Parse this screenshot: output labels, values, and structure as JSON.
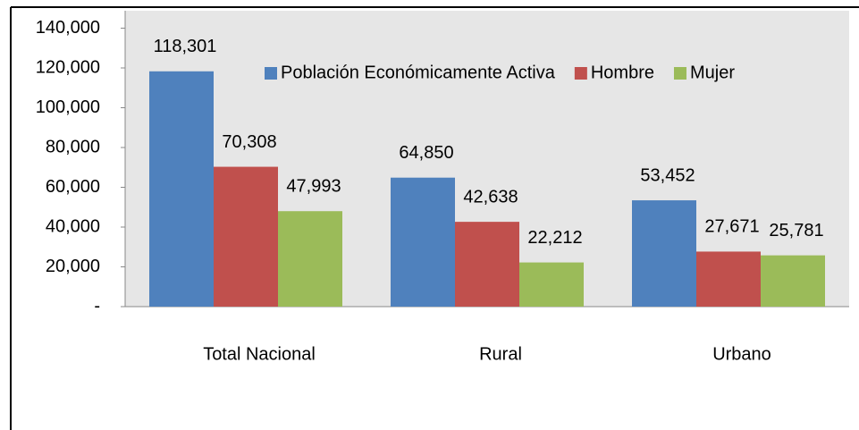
{
  "chart_data": {
    "type": "bar",
    "categories": [
      "Total Nacional",
      "Rural",
      "Urbano"
    ],
    "series": [
      {
        "name": "Población Económicamente Activa",
        "color": "#4f81bd",
        "values": [
          118301,
          64850,
          53452
        ],
        "value_labels": [
          "118,301",
          "64,850",
          "53,452"
        ]
      },
      {
        "name": "Hombre",
        "color": "#c0504d",
        "values": [
          70308,
          42638,
          27671
        ],
        "value_labels": [
          "70,308",
          "42,638",
          "27,671"
        ]
      },
      {
        "name": "Mujer",
        "color": "#9bbb59",
        "values": [
          47993,
          22212,
          25781
        ],
        "value_labels": [
          "47,993",
          "22,212",
          "25,781"
        ]
      }
    ],
    "ylim": [
      0,
      140000
    ],
    "yticks": [
      {
        "value": 0,
        "label": "-"
      },
      {
        "value": 20000,
        "label": "20,000"
      },
      {
        "value": 40000,
        "label": "40,000"
      },
      {
        "value": 60000,
        "label": "60,000"
      },
      {
        "value": 80000,
        "label": "80,000"
      },
      {
        "value": 100000,
        "label": "100,000"
      },
      {
        "value": 120000,
        "label": "120,000"
      },
      {
        "value": 140000,
        "label": "140,000"
      }
    ],
    "legend": "top-right"
  }
}
